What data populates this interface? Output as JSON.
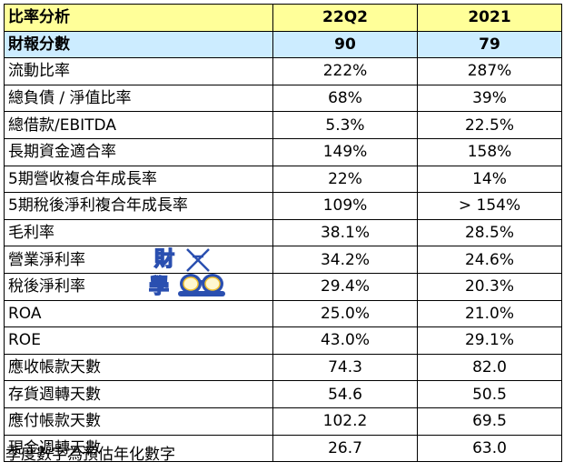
{
  "table": {
    "header": {
      "label": "比率分析",
      "col1": "22Q2",
      "col2": "2021"
    },
    "score": {
      "label": "財報分數",
      "col1": "90",
      "col2": "79"
    },
    "rows": [
      {
        "label": "流動比率",
        "col1": "222%",
        "col2": "287%"
      },
      {
        "label": "總負債 / 淨值比率",
        "col1": "68%",
        "col2": "39%"
      },
      {
        "label": "總借款/EBITDA",
        "col1": "5.3%",
        "col2": "22.5%"
      },
      {
        "label": "長期資金適合率",
        "col1": "149%",
        "col2": "158%"
      },
      {
        "label": "5期營收複合年成長率",
        "col1": "22%",
        "col2": "14%"
      },
      {
        "label": "5期稅後淨利複合年成長率",
        "col1": "109%",
        "col2": "> 154%"
      },
      {
        "label": "毛利率",
        "col1": "38.1%",
        "col2": "28.5%"
      },
      {
        "label": "營業淨利率",
        "col1": "34.2%",
        "col2": "24.6%"
      },
      {
        "label": "稅後淨利率",
        "col1": "29.4%",
        "col2": "20.3%"
      },
      {
        "label": "ROA",
        "col1": "25.0%",
        "col2": "21.0%"
      },
      {
        "label": "ROE",
        "col1": "43.0%",
        "col2": "29.1%"
      },
      {
        "label": "應收帳款天數",
        "col1": "74.3",
        "col2": "82.0"
      },
      {
        "label": "存貨週轉天數",
        "col1": "54.6",
        "col2": "50.5"
      },
      {
        "label": "應付帳款天數",
        "col1": "102.2",
        "col2": "69.5"
      },
      {
        "label": "現金週轉天數",
        "col1": "26.7",
        "col2": "63.0"
      }
    ]
  },
  "note": "季度數字為預估年化數字",
  "watermark": {
    "text": "財學",
    "colors": {
      "gold": "#f2c230",
      "blue": "#2a4fb0"
    }
  }
}
